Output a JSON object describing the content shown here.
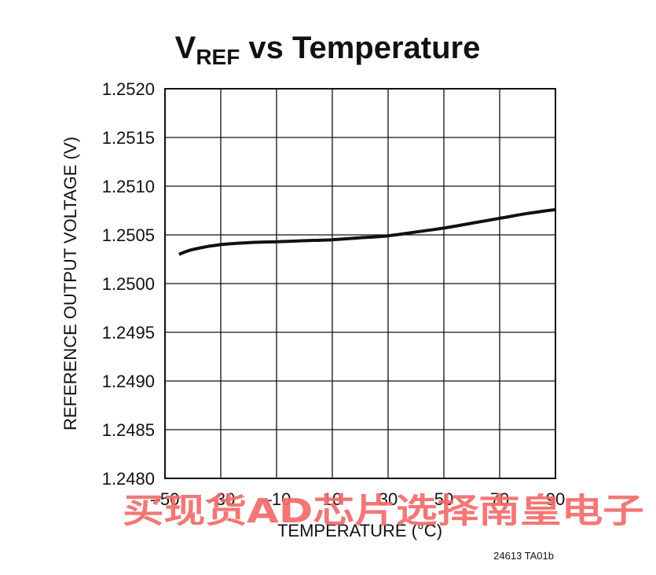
{
  "chart_data": {
    "type": "line",
    "title": {
      "main": "V",
      "subscript": "REF",
      "rest": " vs Temperature"
    },
    "xlabel": "TEMPERATURE (°C)",
    "ylabel": "REFERENCE OUTPUT VOLTAGE (V)",
    "xlim": [
      -50,
      90
    ],
    "ylim": [
      1.248,
      1.252
    ],
    "x_ticks": [
      -50,
      -30,
      -10,
      10,
      30,
      50,
      70,
      90
    ],
    "x_tick_labels": [
      "–50",
      "–30",
      "–10",
      "10",
      "30",
      "50",
      "70",
      "90"
    ],
    "y_ticks": [
      1.248,
      1.2485,
      1.249,
      1.2495,
      1.25,
      1.2505,
      1.251,
      1.2515,
      1.252
    ],
    "y_tick_labels": [
      "1.2480",
      "1.2485",
      "1.2490",
      "1.2495",
      "1.2500",
      "1.2505",
      "1.2510",
      "1.2515",
      "1.2520"
    ],
    "grid": true,
    "series": [
      {
        "x": [
          -45,
          -40,
          -30,
          -20,
          -10,
          0,
          10,
          20,
          30,
          40,
          50,
          60,
          70,
          80,
          90
        ],
        "y": [
          1.2503,
          1.25035,
          1.2504,
          1.25042,
          1.25043,
          1.25044,
          1.25045,
          1.25047,
          1.25049,
          1.25053,
          1.25057,
          1.25062,
          1.25067,
          1.25072,
          1.25076
        ]
      }
    ],
    "line_color": "#111111",
    "figure_code": "24613 TA01b"
  },
  "watermark": "买现货AD芯片选择南皇电子",
  "watermark_color": "#f26b6b"
}
